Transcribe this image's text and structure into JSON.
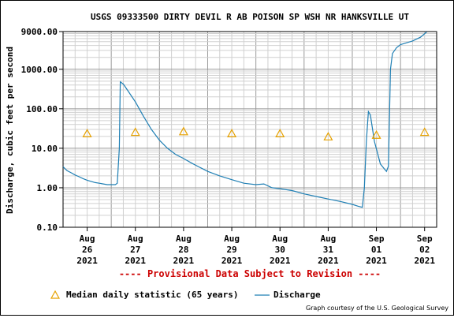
{
  "chart_data": {
    "type": "line",
    "title": "USGS 09333500 DIRTY DEVIL R AB POISON SP WSH NR HANKSVILLE UT",
    "ylabel": "Discharge, cubic feet per second",
    "yscale": "log",
    "ylim": [
      0.1,
      9000
    ],
    "y_ticks": [
      "0.10",
      "1.00",
      "10.00",
      "100.00",
      "1000.00",
      "9000.00"
    ],
    "x_start": "Aug 26 2021 00:00",
    "x_end": "Sep 02 2021 18:00",
    "x_ticks": [
      {
        "month": "Aug",
        "day": "26",
        "year": "2021"
      },
      {
        "month": "Aug",
        "day": "27",
        "year": "2021"
      },
      {
        "month": "Aug",
        "day": "28",
        "year": "2021"
      },
      {
        "month": "Aug",
        "day": "29",
        "year": "2021"
      },
      {
        "month": "Aug",
        "day": "30",
        "year": "2021"
      },
      {
        "month": "Aug",
        "day": "31",
        "year": "2021"
      },
      {
        "month": "Sep",
        "day": "01",
        "year": "2021"
      },
      {
        "month": "Sep",
        "day": "02",
        "year": "2021"
      }
    ],
    "grid": true,
    "series": [
      {
        "name": "Discharge",
        "color": "#1f7fb4",
        "points": [
          [
            "Aug 26 2021 00:00",
            3.4
          ],
          [
            "Aug 26 2021 02:00",
            2.7
          ],
          [
            "Aug 26 2021 04:00",
            2.4
          ],
          [
            "Aug 26 2021 06:00",
            2.1
          ],
          [
            "Aug 26 2021 08:00",
            1.9
          ],
          [
            "Aug 26 2021 10:00",
            1.7
          ],
          [
            "Aug 26 2021 12:00",
            1.55
          ],
          [
            "Aug 26 2021 14:00",
            1.45
          ],
          [
            "Aug 26 2021 16:00",
            1.35
          ],
          [
            "Aug 26 2021 18:00",
            1.3
          ],
          [
            "Aug 26 2021 20:00",
            1.25
          ],
          [
            "Aug 26 2021 22:00",
            1.2
          ],
          [
            "Aug 27 2021 00:00",
            1.2
          ],
          [
            "Aug 27 2021 02:00",
            1.2
          ],
          [
            "Aug 27 2021 03:00",
            1.3
          ],
          [
            "Aug 27 2021 04:00",
            10.0
          ],
          [
            "Aug 27 2021 04:30",
            480
          ],
          [
            "Aug 27 2021 06:00",
            420
          ],
          [
            "Aug 27 2021 08:00",
            300
          ],
          [
            "Aug 27 2021 12:00",
            150
          ],
          [
            "Aug 27 2021 16:00",
            65
          ],
          [
            "Aug 27 2021 20:00",
            30
          ],
          [
            "Aug 28 2021 00:00",
            16
          ],
          [
            "Aug 28 2021 04:00",
            10
          ],
          [
            "Aug 28 2021 08:00",
            7
          ],
          [
            "Aug 28 2021 12:00",
            5.5
          ],
          [
            "Aug 28 2021 16:00",
            4.2
          ],
          [
            "Aug 28 2021 20:00",
            3.3
          ],
          [
            "Aug 29 2021 00:00",
            2.6
          ],
          [
            "Aug 29 2021 06:00",
            2.0
          ],
          [
            "Aug 29 2021 12:00",
            1.6
          ],
          [
            "Aug 29 2021 18:00",
            1.3
          ],
          [
            "Aug 30 2021 00:00",
            1.2
          ],
          [
            "Aug 30 2021 04:00",
            1.25
          ],
          [
            "Aug 30 2021 08:00",
            1.0
          ],
          [
            "Aug 30 2021 12:00",
            0.95
          ],
          [
            "Aug 30 2021 18:00",
            0.85
          ],
          [
            "Aug 31 2021 00:00",
            0.7
          ],
          [
            "Aug 31 2021 06:00",
            0.6
          ],
          [
            "Aug 31 2021 12:00",
            0.52
          ],
          [
            "Aug 31 2021 18:00",
            0.45
          ],
          [
            "Sep 01 2021 00:00",
            0.38
          ],
          [
            "Sep 01 2021 03:00",
            0.34
          ],
          [
            "Sep 01 2021 05:00",
            0.32
          ],
          [
            "Sep 01 2021 06:00",
            1.0
          ],
          [
            "Sep 01 2021 07:00",
            15
          ],
          [
            "Sep 01 2021 08:00",
            85
          ],
          [
            "Sep 01 2021 09:00",
            70
          ],
          [
            "Sep 01 2021 11:00",
            15
          ],
          [
            "Sep 01 2021 14:00",
            4.0
          ],
          [
            "Sep 01 2021 16:00",
            3.0
          ],
          [
            "Sep 01 2021 17:00",
            2.6
          ],
          [
            "Sep 01 2021 18:00",
            3.5
          ],
          [
            "Sep 01 2021 19:00",
            1000
          ],
          [
            "Sep 01 2021 20:00",
            2500
          ],
          [
            "Sep 01 2021 22:00",
            3500
          ],
          [
            "Sep 02 2021 00:00",
            4200
          ],
          [
            "Sep 02 2021 06:00",
            5200
          ],
          [
            "Sep 02 2021 10:00",
            6500
          ],
          [
            "Sep 02 2021 13:00",
            8800
          ]
        ]
      },
      {
        "name": "Median daily statistic (65 years)",
        "color": "#e6a100",
        "points": [
          [
            "Aug 26 2021 12:00",
            24
          ],
          [
            "Aug 27 2021 12:00",
            26
          ],
          [
            "Aug 28 2021 12:00",
            27
          ],
          [
            "Aug 29 2021 12:00",
            24
          ],
          [
            "Aug 30 2021 12:00",
            24
          ],
          [
            "Aug 31 2021 12:00",
            20
          ],
          [
            "Sep 01 2021 12:00",
            22
          ],
          [
            "Sep 02 2021 12:00",
            26
          ]
        ]
      }
    ],
    "legend": {
      "median": "Median daily statistic (65 years)",
      "discharge": "Discharge"
    },
    "legend_placement": "bottom-left"
  },
  "provisional_text": "---- Provisional Data Subject to Revision ----",
  "provisional_color": "#cc0000",
  "credit": "Graph courtesy of the U.S. Geological Survey"
}
